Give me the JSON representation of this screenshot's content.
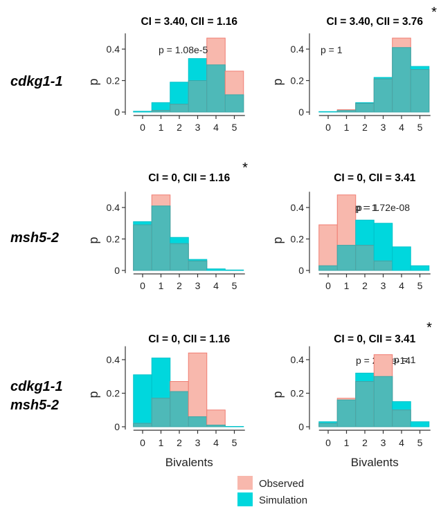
{
  "row_labels": [
    [
      "cdkg1-1"
    ],
    [
      "msh5-2"
    ],
    [
      "cdkg1-1",
      "msh5-2"
    ]
  ],
  "x_axis_title": "Bivalents",
  "legend": [
    {
      "label": "Observed",
      "color": "#f8b8ad"
    },
    {
      "label": "Simulation",
      "color": "#00d7dd"
    }
  ],
  "colors": {
    "observed_fill": "#f8b8ad",
    "observed_stroke": "#f07d72",
    "simulation_fill": "#00d7dd",
    "simulation_stroke": "#00c2ca",
    "overlap_fill": "#4eb9b8"
  },
  "chart_data": [
    {
      "type": "bar",
      "title": "CI = 3.40, CII = 1.16",
      "p_value": "p = 1.08e-5",
      "star": "",
      "xlabel": "",
      "ylabel": "p",
      "categories": [
        0,
        1,
        2,
        3,
        4,
        5
      ],
      "ylim": [
        0,
        0.5
      ],
      "yticks": [
        0,
        0.2,
        0.4
      ],
      "series": [
        {
          "name": "Observed",
          "values": [
            0,
            0.01,
            0.05,
            0.2,
            0.47,
            0.26
          ]
        },
        {
          "name": "Simulation",
          "values": [
            0.005,
            0.06,
            0.19,
            0.34,
            0.3,
            0.11
          ]
        }
      ]
    },
    {
      "type": "bar",
      "title": "CI = 3.40, CII = 3.76",
      "p_value": "p = 1",
      "star": "*",
      "xlabel": "",
      "ylabel": "p",
      "categories": [
        0,
        1,
        2,
        3,
        4,
        5
      ],
      "ylim": [
        0,
        0.5
      ],
      "yticks": [
        0,
        0.2,
        0.4
      ],
      "series": [
        {
          "name": "Observed",
          "values": [
            0,
            0.015,
            0.055,
            0.21,
            0.47,
            0.27
          ]
        },
        {
          "name": "Simulation",
          "values": [
            0.003,
            0.01,
            0.06,
            0.22,
            0.41,
            0.29
          ]
        }
      ]
    },
    {
      "type": "bar",
      "title": "CI = 0, CII = 1.16",
      "p_value": "p = 1",
      "star": "*",
      "xlabel": "",
      "ylabel": "p",
      "categories": [
        0,
        1,
        2,
        3,
        4,
        5
      ],
      "ylim": [
        0,
        0.5
      ],
      "yticks": [
        0,
        0.2,
        0.4
      ],
      "series": [
        {
          "name": "Observed",
          "values": [
            0.29,
            0.48,
            0.17,
            0.06,
            0,
            0
          ]
        },
        {
          "name": "Simulation",
          "values": [
            0.31,
            0.41,
            0.21,
            0.07,
            0.01,
            0.003
          ]
        }
      ]
    },
    {
      "type": "bar",
      "title": "CI = 0, CII = 3.41",
      "p_value": "p = 1.72e-08",
      "star": "",
      "xlabel": "",
      "ylabel": "p",
      "categories": [
        0,
        1,
        2,
        3,
        4,
        5
      ],
      "ylim": [
        0,
        0.5
      ],
      "yticks": [
        0,
        0.2,
        0.4
      ],
      "series": [
        {
          "name": "Observed",
          "values": [
            0.29,
            0.48,
            0.16,
            0.06,
            0,
            0
          ]
        },
        {
          "name": "Simulation",
          "values": [
            0.03,
            0.16,
            0.32,
            0.3,
            0.15,
            0.03
          ]
        }
      ]
    },
    {
      "type": "bar",
      "title": "CI = 0, CII = 1.16",
      "p_value": "p = 2.80e-14",
      "star": "",
      "xlabel": "Bivalents",
      "ylabel": "p",
      "categories": [
        0,
        1,
        2,
        3,
        4,
        5
      ],
      "ylim": [
        0,
        0.48
      ],
      "yticks": [
        0,
        0.2,
        0.4
      ],
      "series": [
        {
          "name": "Observed",
          "values": [
            0.02,
            0.17,
            0.27,
            0.44,
            0.1,
            0
          ]
        },
        {
          "name": "Simulation",
          "values": [
            0.31,
            0.41,
            0.21,
            0.06,
            0.01,
            0.002
          ]
        }
      ]
    },
    {
      "type": "bar",
      "title": "CI = 0, CII = 3.41",
      "p_value": "p = 1",
      "star": "*",
      "xlabel": "Bivalents",
      "ylabel": "p",
      "categories": [
        0,
        1,
        2,
        3,
        4,
        5
      ],
      "ylim": [
        0,
        0.48
      ],
      "yticks": [
        0,
        0.2,
        0.4
      ],
      "series": [
        {
          "name": "Observed",
          "values": [
            0.02,
            0.17,
            0.27,
            0.43,
            0.1,
            0
          ]
        },
        {
          "name": "Simulation",
          "values": [
            0.03,
            0.16,
            0.32,
            0.3,
            0.15,
            0.03
          ]
        }
      ]
    }
  ]
}
